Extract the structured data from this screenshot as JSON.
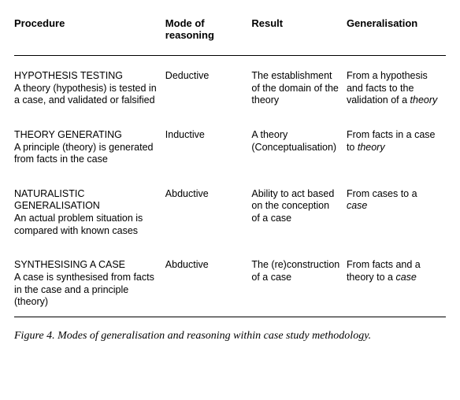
{
  "headers": {
    "procedure": "Procedure",
    "mode": "Mode of reasoning",
    "result": "Result",
    "generalisation": "Generalisation"
  },
  "rows": [
    {
      "title": "HYPOTHESIS TESTING",
      "desc": "A theory (hypothesis) is tested in a case, and validated or falsified",
      "mode": "Deductive",
      "result": "The establishment of the domain of the theory",
      "gen_prefix": "From a hypothesis and facts to the validation of a ",
      "gen_ital": "theory"
    },
    {
      "title": "THEORY GENERATING",
      "desc": "A principle (theory) is generated from facts in the case",
      "mode": "Inductive",
      "result": "A theory (Conceptualisation)",
      "gen_prefix": "From facts in a case to ",
      "gen_ital": "theory"
    },
    {
      "title": "NATURALISTIC GENERALISATION",
      "desc": "An actual problem situation is compared with known cases",
      "mode": "Abductive",
      "result": "Ability to act based on the conception of a case",
      "gen_prefix": "From cases to a ",
      "gen_ital": "case"
    },
    {
      "title": "SYNTHESISING A CASE",
      "desc": "A case is synthesised  from facts in the case and a principle (theory)",
      "mode": "Abductive",
      "result": "The (re)construction of a case",
      "gen_prefix": "From facts and a theory to a ",
      "gen_ital": "case"
    }
  ],
  "caption": "Figure 4. Modes of generalisation and reasoning within case study methodology.",
  "colors": {
    "text": "#000000",
    "background": "#ffffff",
    "rule": "#000000"
  },
  "fontsizes": {
    "header_pt": 13,
    "body_pt": 12.5,
    "caption_pt": 14
  }
}
